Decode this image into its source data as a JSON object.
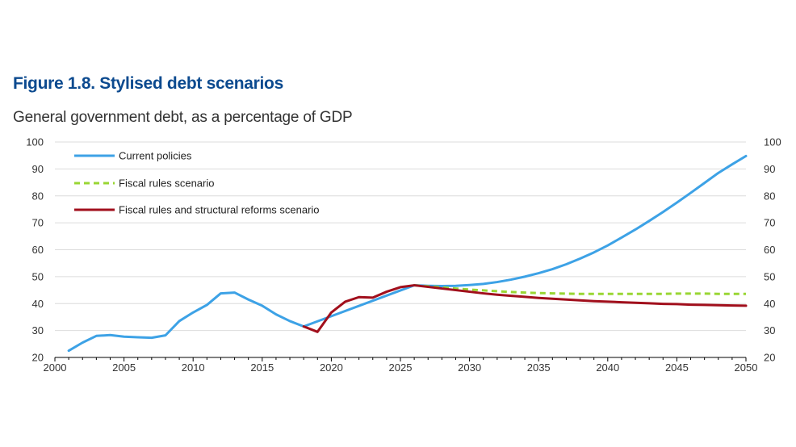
{
  "title": "Figure 1.8. Stylised debt scenarios",
  "subtitle": "General government debt, as a percentage of GDP",
  "chart_data": {
    "type": "line",
    "title": "Figure 1.8. Stylised debt scenarios",
    "subtitle": "General government debt, as a percentage of GDP",
    "xlabel": "",
    "ylabel": "",
    "xlim": [
      2000,
      2050
    ],
    "ylim": [
      20,
      100
    ],
    "x_ticks": [
      2000,
      2005,
      2010,
      2015,
      2020,
      2025,
      2030,
      2035,
      2040,
      2045,
      2050
    ],
    "y_ticks": [
      20,
      30,
      40,
      50,
      60,
      70,
      80,
      90,
      100
    ],
    "y_axis_both_sides": true,
    "grid": "horizontal",
    "legend_position": "top-left",
    "series": [
      {
        "name": "Current policies",
        "color": "#3da2e6",
        "style": "solid",
        "x": [
          2001,
          2002,
          2003,
          2004,
          2005,
          2006,
          2007,
          2008,
          2009,
          2010,
          2011,
          2012,
          2013,
          2014,
          2015,
          2016,
          2017,
          2018,
          2026,
          2027,
          2028,
          2029,
          2030,
          2031,
          2032,
          2033,
          2034,
          2035,
          2036,
          2037,
          2038,
          2039,
          2040,
          2041,
          2042,
          2043,
          2044,
          2045,
          2046,
          2047,
          2048,
          2049,
          2050
        ],
        "y": [
          22.5,
          25.5,
          28,
          28.3,
          27.7,
          27.5,
          27.3,
          28.2,
          33.5,
          36.7,
          39.5,
          43.8,
          44.1,
          41.5,
          39.2,
          36,
          33.5,
          31.5,
          46.8,
          46.6,
          46.5,
          46.6,
          46.9,
          47.3,
          48,
          48.9,
          50,
          51.3,
          52.8,
          54.6,
          56.7,
          59,
          61.6,
          64.5,
          67.5,
          70.7,
          74,
          77.5,
          81.1,
          84.8,
          88.5,
          91.7,
          94.8
        ]
      },
      {
        "name": "Fiscal rules scenario",
        "color": "#99d633",
        "style": "dashed",
        "x": [
          2026,
          2027,
          2028,
          2029,
          2030,
          2031,
          2032,
          2033,
          2034,
          2035,
          2036,
          2037,
          2038,
          2039,
          2040,
          2041,
          2042,
          2043,
          2044,
          2045,
          2046,
          2047,
          2048,
          2049,
          2050
        ],
        "y": [
          46.8,
          46.4,
          46,
          45.6,
          45.2,
          44.9,
          44.6,
          44.3,
          44.1,
          43.9,
          43.8,
          43.7,
          43.6,
          43.6,
          43.6,
          43.6,
          43.6,
          43.6,
          43.6,
          43.7,
          43.7,
          43.7,
          43.6,
          43.6,
          43.6
        ]
      },
      {
        "name": "Fiscal rules and structural reforms scenario",
        "color": "#a10f1c",
        "style": "solid",
        "x": [
          2018,
          2019,
          2020,
          2021,
          2022,
          2023,
          2024,
          2025,
          2026,
          2027,
          2028,
          2029,
          2030,
          2031,
          2032,
          2033,
          2034,
          2035,
          2036,
          2037,
          2038,
          2039,
          2040,
          2041,
          2042,
          2043,
          2044,
          2045,
          2046,
          2047,
          2048,
          2049,
          2050
        ],
        "y": [
          31.5,
          29.5,
          36.7,
          40.7,
          42.4,
          42.2,
          44.4,
          46.1,
          46.8,
          46.2,
          45.6,
          45,
          44.4,
          43.8,
          43.3,
          42.9,
          42.5,
          42.1,
          41.8,
          41.5,
          41.2,
          40.9,
          40.7,
          40.5,
          40.3,
          40.1,
          39.9,
          39.8,
          39.6,
          39.5,
          39.4,
          39.3,
          39.2
        ]
      }
    ]
  }
}
